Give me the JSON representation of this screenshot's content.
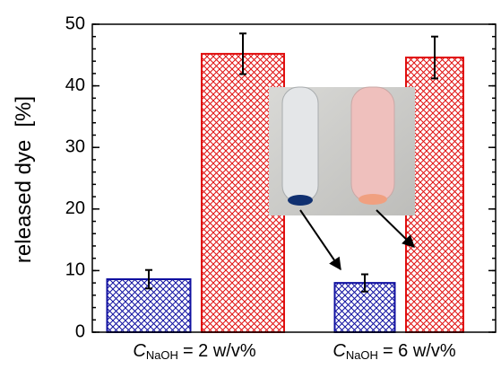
{
  "chart_data": {
    "type": "bar",
    "y_label": "released dye",
    "y_unit": "[%]",
    "category_symbol": "C",
    "category_subscript": "NaOH",
    "categories": [
      "= 2 w/v%",
      "= 6 w/v%"
    ],
    "series": [
      {
        "color": "#1010a0",
        "values": [
          8.6,
          8.0
        ],
        "errors": [
          1.5,
          1.4
        ]
      },
      {
        "color": "#e01010",
        "values": [
          45.2,
          44.6
        ],
        "errors": [
          3.3,
          3.4
        ]
      }
    ],
    "ylim": [
      0,
      50
    ],
    "yticks": [
      0,
      10,
      20,
      30,
      40,
      50
    ]
  }
}
